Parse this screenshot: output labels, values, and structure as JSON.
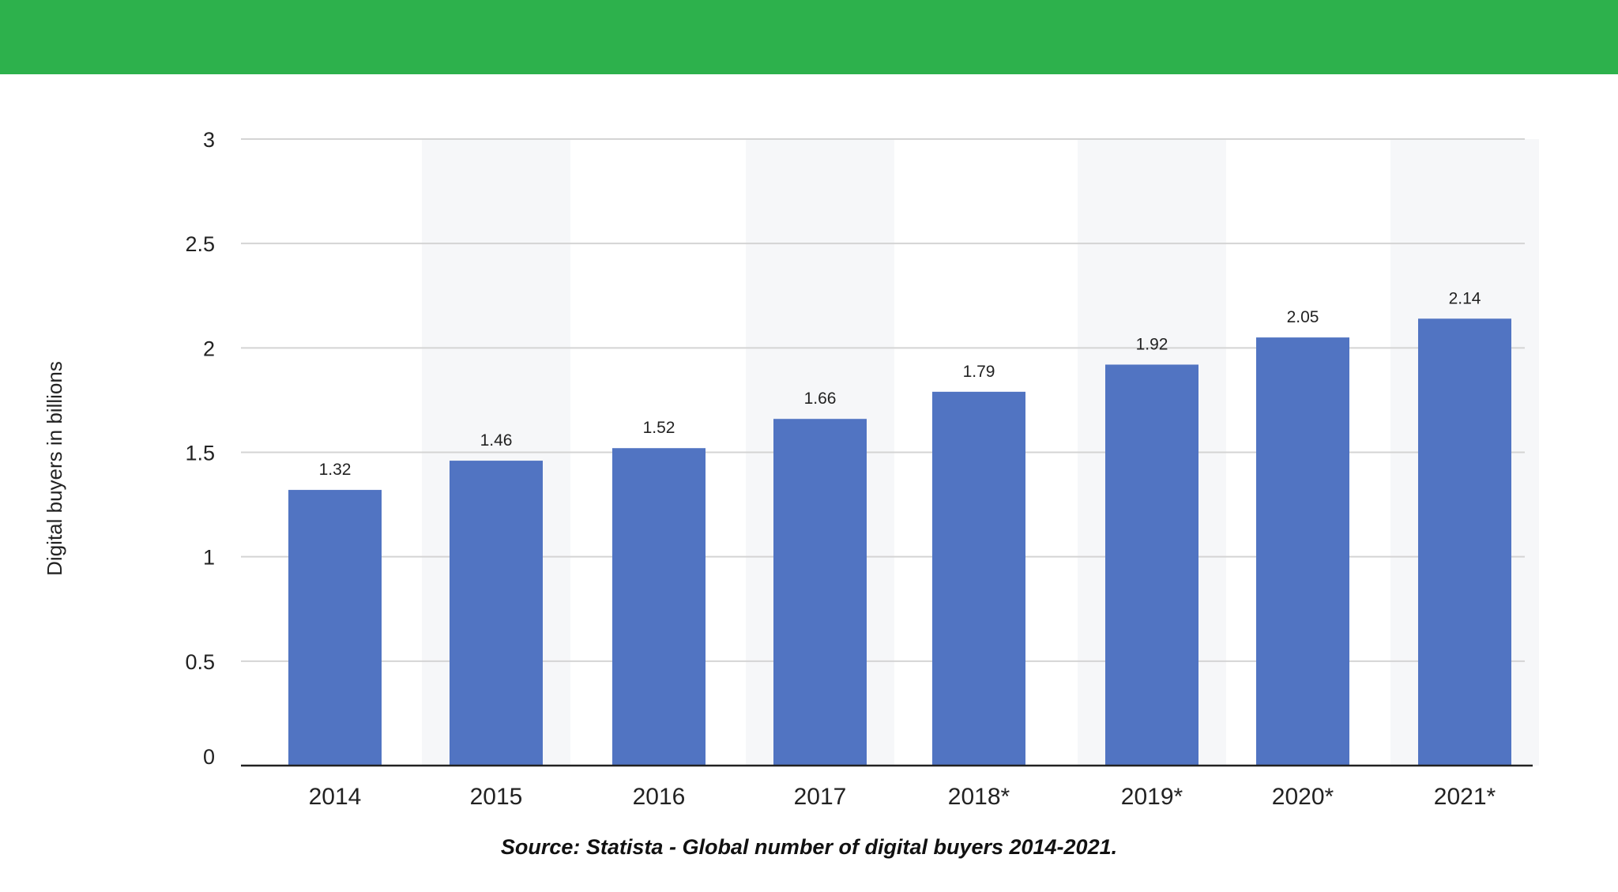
{
  "colors": {
    "banner": "#2db14c",
    "bar": "#5174c2",
    "band": "#f6f7f9",
    "grid": "#d4d4d4",
    "axis": "#222222",
    "text": "#222222"
  },
  "chart_data": {
    "type": "bar",
    "categories": [
      "2014",
      "2015",
      "2016",
      "2017",
      "2018*",
      "2019*",
      "2020*",
      "2021*"
    ],
    "values": [
      1.32,
      1.46,
      1.52,
      1.66,
      1.79,
      1.92,
      2.05,
      2.14
    ],
    "value_labels": [
      "1.32",
      "1.46",
      "1.52",
      "1.66",
      "1.79",
      "1.92",
      "2.05",
      "2.14"
    ],
    "title": "",
    "xlabel": "",
    "ylabel": "Digital buyers in billions",
    "ylim": [
      0,
      3
    ],
    "yticks": [
      0,
      0.5,
      1,
      1.5,
      2,
      2.5,
      3
    ],
    "ytick_labels": [
      "0",
      "0.5",
      "1",
      "1.5",
      "2",
      "2.5",
      "3"
    ],
    "grid": true,
    "legend": "none",
    "alternating_bands": true
  },
  "source": "Source: Statista - Global number of digital buyers 2014-2021."
}
